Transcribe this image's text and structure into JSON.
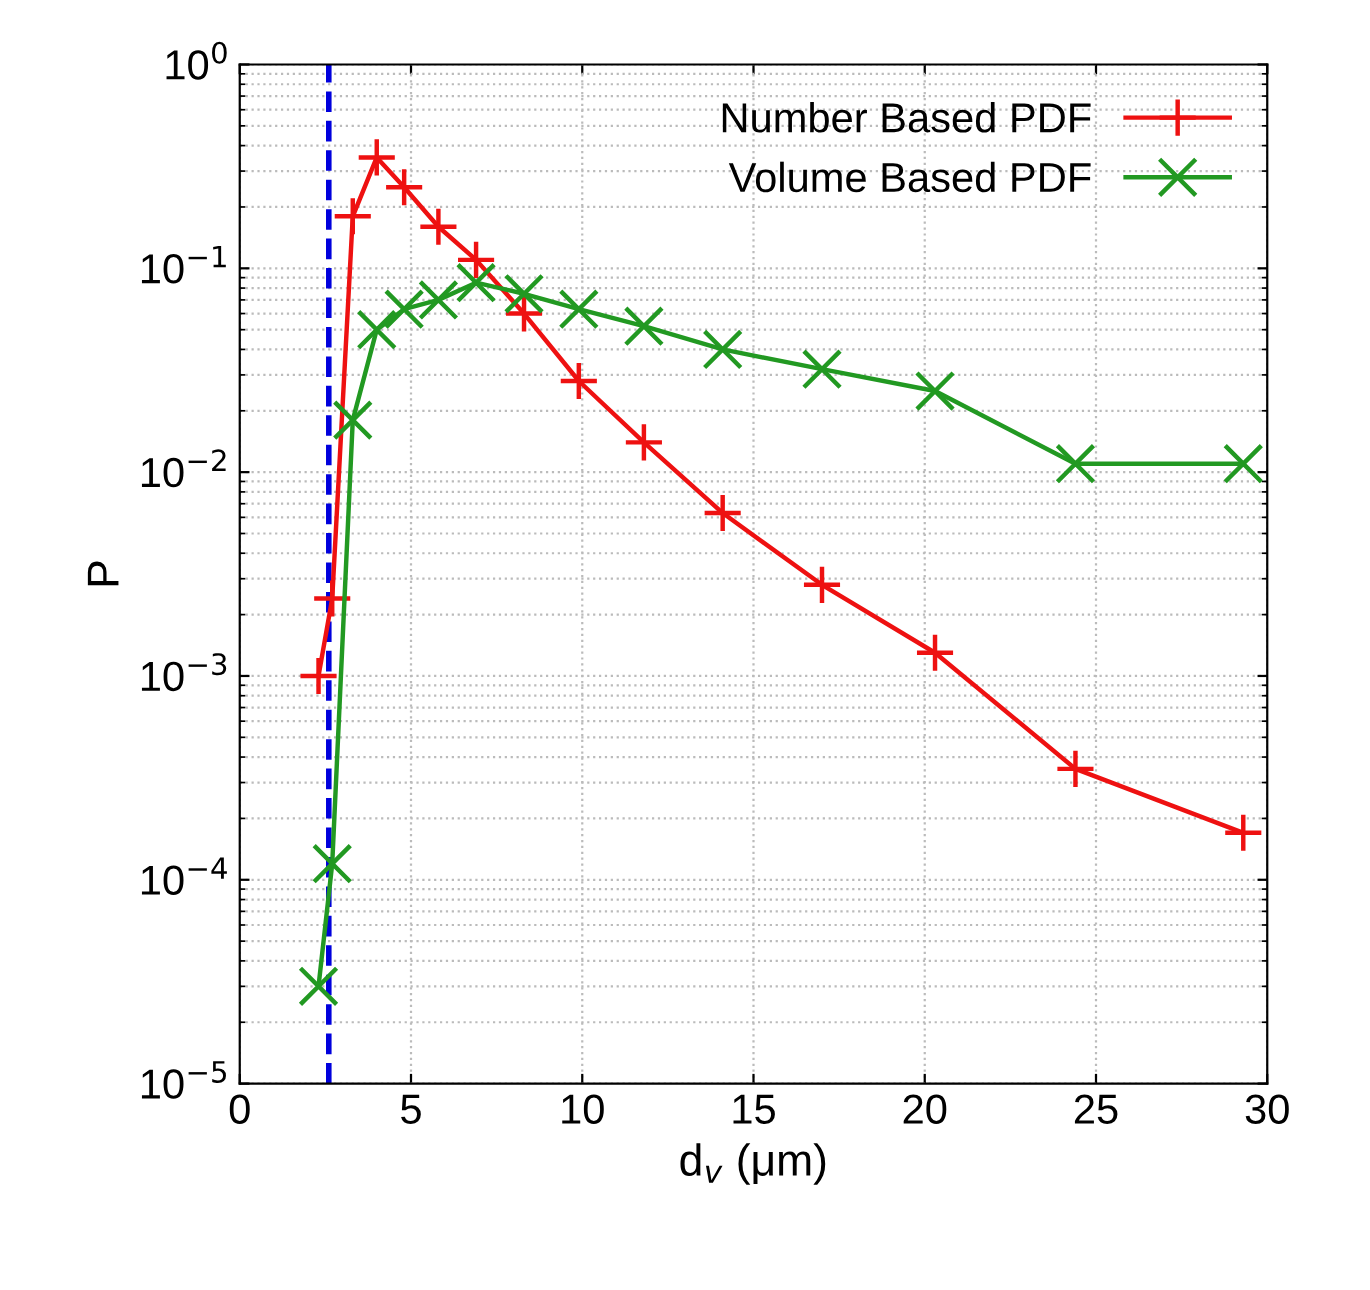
{
  "chart_data": {
    "type": "line",
    "xlabel": "d$_{v}$ (μm)",
    "ylabel": "P",
    "log": "y",
    "xlim": [
      0,
      30
    ],
    "xticks": [
      0,
      5,
      10,
      15,
      20,
      25,
      30
    ],
    "ylim": [
      1e-05,
      1
    ],
    "yticks": [
      {
        "value": 1e-05,
        "label": "10$^{−5}$"
      },
      {
        "value": 0.0001,
        "label": "10$^{−4}$"
      },
      {
        "value": 0.001,
        "label": "10$^{−3}$"
      },
      {
        "value": 0.01,
        "label": "10$^{−2}$"
      },
      {
        "value": 0.1,
        "label": "10$^{−1}$"
      },
      {
        "value": 1,
        "label": "10$^{0}$"
      }
    ],
    "grid": true,
    "legend": "top right",
    "line_style": "solid",
    "ref_lines": [
      {
        "axis": "x",
        "value": 2.6,
        "color": "#0000dd",
        "line_style": "dashed"
      }
    ],
    "series": [
      {
        "name": "Number Based PDF",
        "color": "#ee1111",
        "marker": "plus",
        "x": [
          2.3,
          2.7,
          3.3,
          4.0,
          4.8,
          5.8,
          6.9,
          8.3,
          9.9,
          11.8,
          14.1,
          17.0,
          20.3,
          24.4,
          29.3
        ],
        "values": [
          0.001,
          0.0024,
          0.18,
          0.35,
          0.25,
          0.16,
          0.11,
          0.06,
          0.028,
          0.014,
          0.0063,
          0.0028,
          0.0013,
          0.00035,
          0.00017
        ]
      },
      {
        "name": "Volume Based PDF",
        "color": "#229922",
        "marker": "cross",
        "x": [
          2.3,
          2.7,
          3.3,
          4.0,
          4.8,
          5.8,
          6.9,
          8.3,
          9.9,
          11.8,
          14.1,
          17.0,
          20.3,
          24.4,
          29.3
        ],
        "values": [
          3e-05,
          0.00012,
          0.018,
          0.05,
          0.063,
          0.07,
          0.085,
          0.075,
          0.063,
          0.052,
          0.04,
          0.032,
          0.025,
          0.011,
          0.011
        ]
      }
    ]
  }
}
